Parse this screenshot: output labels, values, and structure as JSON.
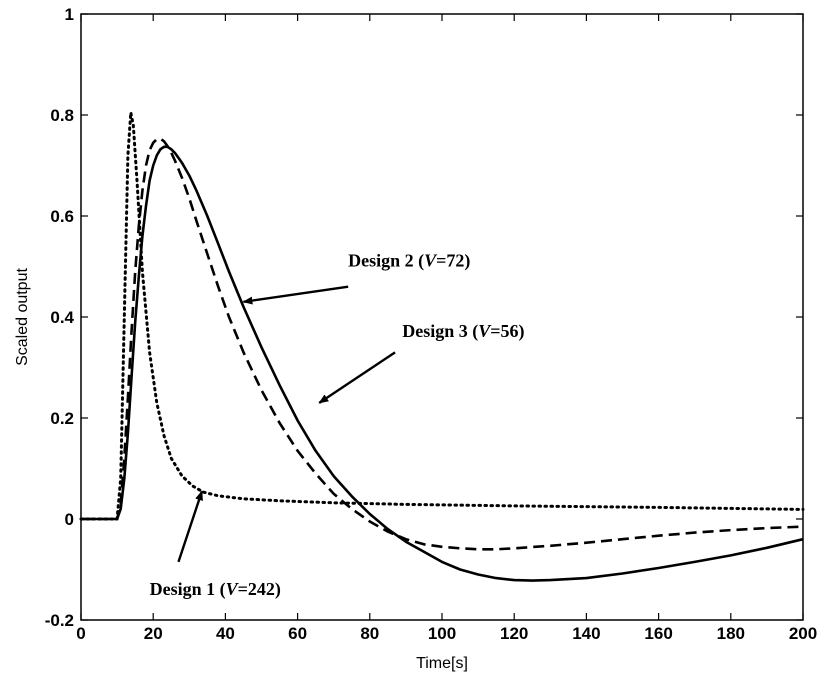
{
  "chart_data": {
    "type": "line",
    "title": "",
    "xlabel": "Time[s]",
    "ylabel": "Scaled output",
    "xlim": [
      0,
      200
    ],
    "ylim": [
      -0.2,
      1
    ],
    "xticks": [
      0,
      20,
      40,
      60,
      80,
      100,
      120,
      140,
      160,
      180,
      200
    ],
    "yticks": [
      -0.2,
      0,
      0.2,
      0.4,
      0.6,
      0.8,
      1
    ],
    "xtick_labels": [
      "0",
      "20",
      "40",
      "60",
      "80",
      "100",
      "120",
      "140",
      "160",
      "180",
      "200"
    ],
    "ytick_labels": [
      "-0.2",
      "0",
      "0.2",
      "0.4",
      "0.6",
      "0.8",
      "1"
    ],
    "grid": false,
    "series": [
      {
        "style": "dotted",
        "x": [
          0,
          10,
          11,
          12,
          13,
          13.8,
          14.5,
          15.5,
          17,
          19,
          21,
          23,
          25,
          28,
          31,
          34,
          38,
          45,
          55,
          70,
          90,
          120,
          160,
          200
        ],
        "y": [
          0,
          0,
          0.08,
          0.4,
          0.72,
          0.805,
          0.78,
          0.67,
          0.49,
          0.33,
          0.23,
          0.165,
          0.12,
          0.085,
          0.065,
          0.053,
          0.046,
          0.04,
          0.036,
          0.032,
          0.029,
          0.026,
          0.023,
          0.019
        ]
      },
      {
        "style": "dashed",
        "x": [
          0,
          10,
          11,
          12,
          13,
          14,
          15,
          16,
          17,
          18,
          19,
          20,
          21,
          22,
          23,
          24,
          25,
          26,
          28,
          30,
          32,
          35,
          38,
          41,
          45,
          50,
          55,
          60,
          65,
          70,
          75,
          80,
          85,
          90,
          95,
          100,
          105,
          110,
          115,
          120,
          130,
          140,
          150,
          160,
          170,
          180,
          190,
          200
        ],
        "y": [
          0,
          0,
          0.03,
          0.12,
          0.24,
          0.37,
          0.49,
          0.58,
          0.65,
          0.7,
          0.73,
          0.745,
          0.752,
          0.753,
          0.748,
          0.738,
          0.725,
          0.71,
          0.675,
          0.635,
          0.59,
          0.525,
          0.46,
          0.4,
          0.33,
          0.255,
          0.19,
          0.135,
          0.09,
          0.05,
          0.02,
          -0.005,
          -0.025,
          -0.04,
          -0.05,
          -0.055,
          -0.058,
          -0.06,
          -0.06,
          -0.058,
          -0.053,
          -0.047,
          -0.04,
          -0.033,
          -0.027,
          -0.022,
          -0.018,
          -0.015
        ]
      },
      {
        "style": "solid",
        "x": [
          0,
          10,
          11,
          12,
          13,
          14,
          15,
          16,
          17,
          18,
          19,
          20,
          21,
          22,
          23,
          24,
          25,
          26,
          27,
          28,
          30,
          32,
          35,
          38,
          41,
          45,
          50,
          55,
          60,
          65,
          70,
          75,
          80,
          85,
          90,
          95,
          100,
          105,
          110,
          115,
          120,
          125,
          130,
          140,
          150,
          160,
          170,
          180,
          190,
          200
        ],
        "y": [
          0,
          0,
          0.02,
          0.08,
          0.17,
          0.28,
          0.39,
          0.48,
          0.56,
          0.62,
          0.67,
          0.7,
          0.72,
          0.732,
          0.737,
          0.737,
          0.732,
          0.725,
          0.715,
          0.705,
          0.68,
          0.65,
          0.6,
          0.545,
          0.49,
          0.42,
          0.34,
          0.265,
          0.195,
          0.135,
          0.085,
          0.045,
          0.01,
          -0.02,
          -0.045,
          -0.065,
          -0.085,
          -0.1,
          -0.11,
          -0.117,
          -0.121,
          -0.122,
          -0.121,
          -0.117,
          -0.108,
          -0.097,
          -0.085,
          -0.072,
          -0.057,
          -0.04
        ]
      }
    ],
    "annotations": [
      {
        "parts": [
          "Design 2 (",
          "V",
          "=72)"
        ],
        "text_at": [
          74,
          0.5
        ],
        "arrow_from": [
          74,
          0.46
        ],
        "arrow_to": [
          45,
          0.43
        ]
      },
      {
        "parts": [
          "Design 3 (",
          "V",
          "=56)"
        ],
        "text_at": [
          89,
          0.36
        ],
        "arrow_from": [
          87,
          0.33
        ],
        "arrow_to": [
          66,
          0.23
        ]
      },
      {
        "parts": [
          "Design 1 (",
          "V",
          "=242)"
        ],
        "text_at": [
          19,
          -0.15
        ],
        "arrow_from": [
          27,
          -0.085
        ],
        "arrow_to": [
          33.5,
          0.055
        ]
      }
    ]
  }
}
